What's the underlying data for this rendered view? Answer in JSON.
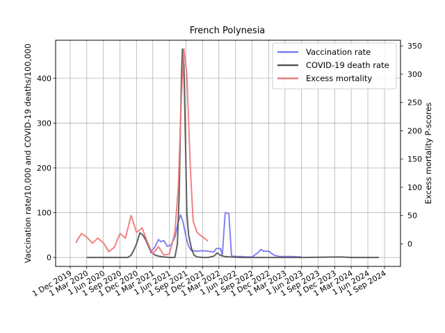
{
  "chart_data": {
    "type": "line",
    "title": "French Polynesia",
    "ylabel_left": "Vaccination rate/10,000 and COVID-19 deaths/100,000",
    "ylabel_right": "Excess mortality P-scores",
    "ylim_left": [
      -20,
      485
    ],
    "ylim_right": [
      -40,
      360
    ],
    "grid": true,
    "legend_position": "top-right",
    "x_ticks": [
      "1 Dec 2019",
      "1 Mar 2020",
      "1 Jun 2020",
      "1 Sep 2020",
      "1 Dec 2020",
      "1 Mar 2021",
      "1 Jun 2021",
      "1 Sep 2021",
      "1 Dec 2021",
      "1 Mar 2022",
      "1 Jun 2022",
      "1 Sep 2022",
      "1 Dec 2022",
      "1 Mar 2023",
      "1 Jun 2023",
      "1 Sep 2023",
      "1 Dec 2023",
      "1 Mar 2024",
      "1 Jun 2024",
      "1 Sep 2024"
    ],
    "y_ticks_left": [
      0,
      100,
      200,
      300,
      400
    ],
    "y_ticks_right": [
      0,
      50,
      100,
      150,
      200,
      250,
      300,
      350
    ],
    "series": [
      {
        "name": "Vaccination rate",
        "color": "#7a7af0",
        "axis": "left",
        "points": [
          [
            "2021-02-15",
            10
          ],
          [
            "2021-03-15",
            25
          ],
          [
            "2021-04-01",
            40
          ],
          [
            "2021-04-15",
            35
          ],
          [
            "2021-05-01",
            38
          ],
          [
            "2021-05-20",
            25
          ],
          [
            "2021-06-10",
            28
          ],
          [
            "2021-07-01",
            45
          ],
          [
            "2021-07-20",
            80
          ],
          [
            "2021-08-01",
            95
          ],
          [
            "2021-08-15",
            80
          ],
          [
            "2021-09-01",
            45
          ],
          [
            "2021-09-15",
            25
          ],
          [
            "2021-10-01",
            15
          ],
          [
            "2021-10-15",
            15
          ],
          [
            "2021-11-01",
            14
          ],
          [
            "2021-12-01",
            15
          ],
          [
            "2022-01-01",
            14
          ],
          [
            "2022-02-01",
            12
          ],
          [
            "2022-02-15",
            20
          ],
          [
            "2022-03-10",
            20
          ],
          [
            "2022-03-20",
            5
          ],
          [
            "2022-04-05",
            100
          ],
          [
            "2022-04-25",
            98
          ],
          [
            "2022-05-10",
            3
          ],
          [
            "2022-06-01",
            2
          ],
          [
            "2022-07-01",
            2
          ],
          [
            "2022-08-01",
            1
          ],
          [
            "2022-09-01",
            1
          ],
          [
            "2022-10-01",
            10
          ],
          [
            "2022-10-20",
            18
          ],
          [
            "2022-11-01",
            14
          ],
          [
            "2022-12-01",
            14
          ],
          [
            "2023-01-01",
            5
          ],
          [
            "2023-02-01",
            2
          ],
          [
            "2023-04-01",
            2
          ],
          [
            "2023-06-01",
            1
          ]
        ]
      },
      {
        "name": "COVID-19 death rate",
        "color": "#555555",
        "axis": "left",
        "points": [
          [
            "2020-03-01",
            0
          ],
          [
            "2020-06-01",
            0
          ],
          [
            "2020-09-01",
            0
          ],
          [
            "2020-10-15",
            0
          ],
          [
            "2020-11-01",
            5
          ],
          [
            "2020-11-15",
            15
          ],
          [
            "2020-12-01",
            30
          ],
          [
            "2020-12-20",
            55
          ],
          [
            "2021-01-05",
            50
          ],
          [
            "2021-01-20",
            40
          ],
          [
            "2021-02-05",
            25
          ],
          [
            "2021-02-20",
            12
          ],
          [
            "2021-03-10",
            6
          ],
          [
            "2021-04-01",
            3
          ],
          [
            "2021-05-01",
            1
          ],
          [
            "2021-06-01",
            0
          ],
          [
            "2021-07-01",
            0
          ],
          [
            "2021-07-15",
            30
          ],
          [
            "2021-07-25",
            140
          ],
          [
            "2021-08-01",
            300
          ],
          [
            "2021-08-07",
            410
          ],
          [
            "2021-08-12",
            465
          ],
          [
            "2021-08-20",
            430
          ],
          [
            "2021-08-28",
            270
          ],
          [
            "2021-09-05",
            100
          ],
          [
            "2021-09-15",
            50
          ],
          [
            "2021-10-01",
            20
          ],
          [
            "2021-10-15",
            5
          ],
          [
            "2021-11-01",
            1
          ],
          [
            "2021-12-01",
            0
          ],
          [
            "2022-01-01",
            0
          ],
          [
            "2022-02-01",
            3
          ],
          [
            "2022-02-20",
            10
          ],
          [
            "2022-03-10",
            5
          ],
          [
            "2022-04-01",
            2
          ],
          [
            "2022-05-01",
            1
          ],
          [
            "2022-07-01",
            0
          ],
          [
            "2023-06-01",
            0
          ],
          [
            "2024-01-01",
            1
          ],
          [
            "2024-03-01",
            0
          ],
          [
            "2024-08-01",
            0
          ]
        ]
      },
      {
        "name": "Excess mortality",
        "color": "#f07a7a",
        "axis": "right",
        "points": [
          [
            "2020-01-01",
            2
          ],
          [
            "2020-02-01",
            18
          ],
          [
            "2020-03-01",
            12
          ],
          [
            "2020-04-01",
            1
          ],
          [
            "2020-05-01",
            10
          ],
          [
            "2020-06-01",
            2
          ],
          [
            "2020-07-01",
            -14
          ],
          [
            "2020-08-01",
            -6
          ],
          [
            "2020-09-01",
            18
          ],
          [
            "2020-10-01",
            10
          ],
          [
            "2020-11-01",
            50
          ],
          [
            "2020-12-01",
            20
          ],
          [
            "2021-01-01",
            28
          ],
          [
            "2021-02-01",
            2
          ],
          [
            "2021-03-01",
            -18
          ],
          [
            "2021-04-01",
            -5
          ],
          [
            "2021-05-01",
            -20
          ],
          [
            "2021-06-01",
            -18
          ],
          [
            "2021-07-01",
            20
          ],
          [
            "2021-07-20",
            100
          ],
          [
            "2021-08-05",
            250
          ],
          [
            "2021-08-20",
            345
          ],
          [
            "2021-09-05",
            300
          ],
          [
            "2021-09-25",
            130
          ],
          [
            "2021-10-10",
            40
          ],
          [
            "2021-11-01",
            20
          ],
          [
            "2021-12-01",
            12
          ],
          [
            "2021-12-31",
            5
          ]
        ]
      }
    ]
  }
}
